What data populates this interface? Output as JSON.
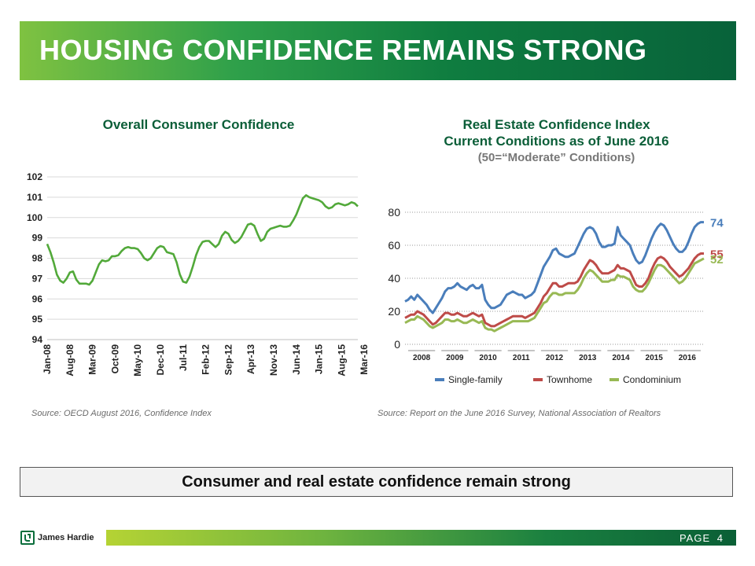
{
  "banner": {
    "title": "HOUSING CONFIDENCE REMAINS STRONG"
  },
  "left_chart": {
    "source": "Source: OECD August 2016, Confidence Index"
  },
  "right_chart": {
    "title_line1": "Real Estate Confidence Index",
    "title_line2": "Current Conditions as of June 2016",
    "subtitle": "(50=“Moderate” Conditions)",
    "source": "Source: Report on the June 2016 Survey, National Association of Realtors"
  },
  "callout": "Consumer and real estate confidence remain strong",
  "footer": {
    "logo_text": "James Hardie",
    "page_label": "PAGE",
    "page_number": "4"
  },
  "colors": {
    "consumer_line": "#52a93a",
    "single_family": "#4a7ebb",
    "townhome": "#be4b48",
    "condominium": "#98b954"
  },
  "chart_data": [
    {
      "type": "line",
      "title": "Overall Consumer Confidence",
      "xlabel": "",
      "ylabel": "",
      "ylim": [
        94,
        102
      ],
      "yticks": [
        "94",
        "95",
        "96",
        "97",
        "98",
        "99",
        "100",
        "101",
        "102"
      ],
      "grid": true,
      "xtick_labels": [
        "Jan-08",
        "Aug-08",
        "Mar-09",
        "Oct-09",
        "May-10",
        "Dec-10",
        "Jul-11",
        "Feb-12",
        "Sep-12",
        "Apr-13",
        "Nov-13",
        "Jun-14",
        "Jan-15",
        "Aug-15",
        "Mar-16"
      ],
      "series": [
        {
          "name": "Overall Consumer Confidence",
          "values": [
            98.7,
            98.3,
            97.8,
            97.2,
            96.9,
            96.8,
            97.0,
            97.3,
            97.35,
            96.95,
            96.75,
            96.75,
            96.75,
            96.7,
            96.9,
            97.3,
            97.7,
            97.9,
            97.85,
            97.9,
            98.1,
            98.1,
            98.15,
            98.35,
            98.5,
            98.55,
            98.5,
            98.5,
            98.45,
            98.25,
            98.0,
            97.9,
            98.0,
            98.25,
            98.5,
            98.6,
            98.55,
            98.3,
            98.25,
            98.2,
            97.8,
            97.2,
            96.85,
            96.8,
            97.1,
            97.6,
            98.15,
            98.55,
            98.8,
            98.85,
            98.85,
            98.7,
            98.55,
            98.7,
            99.1,
            99.3,
            99.2,
            98.9,
            98.75,
            98.85,
            99.05,
            99.35,
            99.65,
            99.7,
            99.6,
            99.2,
            98.85,
            98.95,
            99.3,
            99.45,
            99.5,
            99.55,
            99.6,
            99.55,
            99.55,
            99.6,
            99.85,
            100.15,
            100.55,
            100.95,
            101.1,
            101.0,
            100.95,
            100.9,
            100.85,
            100.75,
            100.55,
            100.45,
            100.5,
            100.65,
            100.7,
            100.65,
            100.6,
            100.65,
            100.75,
            100.7,
            100.55
          ]
        }
      ]
    },
    {
      "type": "line",
      "title": "Real Estate Confidence Index",
      "xlabel": "",
      "ylabel": "",
      "ylim": [
        0,
        80
      ],
      "yticks": [
        "0",
        "20",
        "40",
        "60",
        "80"
      ],
      "grid": true,
      "xtick_labels": [
        "2008",
        "2009",
        "2010",
        "2011",
        "2012",
        "2013",
        "2014",
        "2015",
        "2016"
      ],
      "series": [
        {
          "name": "Single-family",
          "end_label": "74",
          "values": [
            26,
            27,
            29,
            27,
            30,
            28,
            26,
            24,
            21,
            19,
            22,
            25,
            28,
            32,
            34,
            34,
            35,
            37,
            35,
            34,
            33,
            35,
            36,
            34,
            34,
            36,
            27,
            24,
            22,
            22,
            23,
            24,
            27,
            30,
            31,
            32,
            31,
            30,
            30,
            28,
            29,
            30,
            32,
            37,
            42,
            47,
            50,
            53,
            57,
            58,
            55,
            54,
            53,
            53,
            54,
            55,
            59,
            63,
            67,
            70,
            71,
            70,
            67,
            62,
            59,
            59,
            60,
            60,
            61,
            71,
            66,
            64,
            62,
            60,
            55,
            51,
            49,
            50,
            54,
            59,
            64,
            68,
            71,
            73,
            72,
            69,
            65,
            61,
            58,
            56,
            56,
            58,
            62,
            67,
            71,
            73,
            74,
            74
          ]
        },
        {
          "name": "Townhome",
          "end_label": "55",
          "values": [
            16,
            17,
            18,
            18,
            20,
            19,
            18,
            16,
            14,
            12,
            13,
            15,
            17,
            19,
            19,
            18,
            18,
            19,
            18,
            17,
            17,
            18,
            19,
            18,
            17,
            18,
            13,
            12,
            11,
            11,
            12,
            13,
            14,
            15,
            16,
            17,
            17,
            17,
            17,
            16,
            17,
            18,
            19,
            22,
            25,
            29,
            31,
            34,
            37,
            37,
            35,
            35,
            36,
            37,
            37,
            37,
            38,
            41,
            45,
            48,
            51,
            50,
            48,
            45,
            43,
            43,
            43,
            44,
            45,
            48,
            46,
            46,
            45,
            44,
            40,
            36,
            35,
            35,
            37,
            40,
            45,
            49,
            52,
            53,
            52,
            50,
            47,
            45,
            43,
            41,
            42,
            44,
            46,
            49,
            52,
            54,
            55,
            55
          ]
        },
        {
          "name": "Condominium",
          "end_label": "52",
          "values": [
            13,
            14,
            15,
            15,
            17,
            16,
            15,
            13,
            11,
            10,
            11,
            12,
            13,
            15,
            15,
            14,
            14,
            15,
            14,
            13,
            13,
            14,
            15,
            14,
            13,
            14,
            10,
            9,
            9,
            8,
            9,
            10,
            11,
            12,
            13,
            14,
            14,
            14,
            14,
            14,
            14,
            15,
            16,
            19,
            22,
            25,
            26,
            29,
            31,
            31,
            30,
            30,
            31,
            31,
            31,
            31,
            33,
            36,
            40,
            43,
            45,
            44,
            42,
            40,
            38,
            38,
            38,
            39,
            39,
            42,
            41,
            41,
            40,
            39,
            35,
            33,
            32,
            32,
            34,
            37,
            41,
            45,
            48,
            48,
            47,
            45,
            43,
            41,
            39,
            37,
            38,
            40,
            43,
            46,
            49,
            50,
            51,
            52
          ]
        }
      ]
    }
  ]
}
